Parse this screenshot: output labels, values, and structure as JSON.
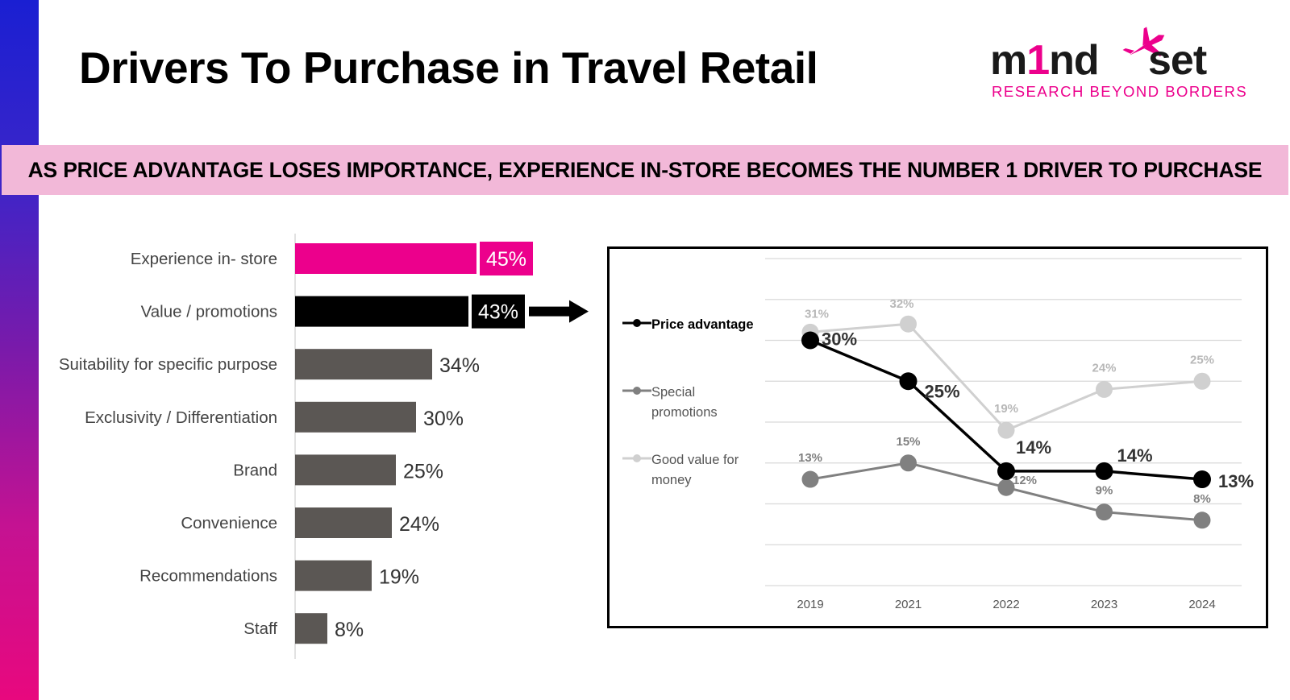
{
  "slide": {
    "title": "Drivers To Purchase in Travel Retail",
    "banner": "AS PRICE ADVANTAGE LOSES IMPORTANCE, EXPERIENCE IN-STORE BECOMES THE NUMBER 1 DRIVER TO PURCHASE"
  },
  "logo": {
    "wordmark": "m1nd-set",
    "tagline": "RESEARCH BEYOND BORDERS"
  },
  "colors": {
    "accent_pink": "#ec008c",
    "banner_pink": "#f2b8d8",
    "bar_black": "#000000",
    "bar_gray": "#5b5754",
    "price_advantage": "#000000",
    "special_promotions": "#808080",
    "good_value": "#d0d0d0"
  },
  "chart_data": [
    {
      "type": "bar",
      "orientation": "horizontal",
      "categories": [
        "Experience in- store",
        "Value / promotions",
        "Suitability for specific purpose",
        "Exclusivity / Differentiation",
        "Brand",
        "Convenience",
        "Recommendations",
        "Staff"
      ],
      "values": [
        45,
        43,
        34,
        30,
        25,
        24,
        19,
        8
      ],
      "labels": [
        "45%",
        "43%",
        "34%",
        "30%",
        "25%",
        "24%",
        "19%",
        "8%"
      ],
      "bar_colors": [
        "#ec008c",
        "#000000",
        "#5b5754",
        "#5b5754",
        "#5b5754",
        "#5b5754",
        "#5b5754",
        "#5b5754"
      ],
      "highlight_label_bg": [
        "#ec008c",
        "#000000",
        null,
        null,
        null,
        null,
        null,
        null
      ]
    },
    {
      "type": "line",
      "categories": [
        "2019",
        "2021",
        "2022",
        "2023",
        "2024"
      ],
      "ylim": [
        0,
        40
      ],
      "grid": true,
      "legend_position": "left",
      "series": [
        {
          "name": "Price advantage",
          "values": [
            30,
            25,
            14,
            14,
            13
          ],
          "labels": [
            "30%",
            "25%",
            "14%",
            "14%",
            "13%"
          ],
          "color": "#000000"
        },
        {
          "name": "Special promotions",
          "values": [
            13,
            15,
            12,
            9,
            8
          ],
          "labels": [
            "13%",
            "15%",
            "12%",
            "9%",
            "8%"
          ],
          "color": "#808080"
        },
        {
          "name": "Good value for money",
          "values": [
            31,
            32,
            19,
            24,
            25
          ],
          "labels": [
            "31%",
            "32%",
            "19%",
            "24%",
            "25%"
          ],
          "color": "#d0d0d0"
        }
      ]
    }
  ]
}
